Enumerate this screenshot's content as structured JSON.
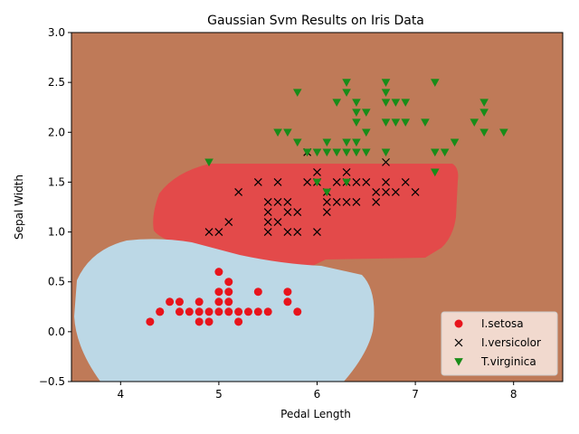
{
  "chart_data": {
    "type": "scatter",
    "title": "Gaussian Svm Results on Iris Data",
    "xlabel": "Pedal Length",
    "ylabel": "Sepal Width",
    "xlim": [
      3.5,
      8.5
    ],
    "ylim": [
      -0.5,
      3.0
    ],
    "xticks": [
      "4",
      "5",
      "6",
      "7",
      "8"
    ],
    "yticks": [
      "−0.5",
      "0.0",
      "0.5",
      "1.0",
      "1.5",
      "2.0",
      "2.5",
      "3.0"
    ],
    "grid": false,
    "legend_position": "bottom-right",
    "regions": [
      {
        "class": "T.virginica",
        "color": "#bf7a58",
        "role": "background"
      },
      {
        "class": "I.versicolor",
        "color": "#e34a4a"
      },
      {
        "class": "I.setosa",
        "color": "#bcd8e6"
      }
    ],
    "series": [
      {
        "name": "I.setosa",
        "marker": "circle",
        "color": "#e8141c",
        "points": [
          [
            4.3,
            0.1
          ],
          [
            4.4,
            0.2
          ],
          [
            4.4,
            0.2
          ],
          [
            4.5,
            0.3
          ],
          [
            4.6,
            0.2
          ],
          [
            4.6,
            0.3
          ],
          [
            4.7,
            0.2
          ],
          [
            4.8,
            0.1
          ],
          [
            4.8,
            0.2
          ],
          [
            4.8,
            0.3
          ],
          [
            4.9,
            0.1
          ],
          [
            4.9,
            0.2
          ],
          [
            5.0,
            0.2
          ],
          [
            5.0,
            0.3
          ],
          [
            5.0,
            0.4
          ],
          [
            5.0,
            0.6
          ],
          [
            5.1,
            0.2
          ],
          [
            5.1,
            0.3
          ],
          [
            5.1,
            0.4
          ],
          [
            5.1,
            0.5
          ],
          [
            5.2,
            0.1
          ],
          [
            5.2,
            0.2
          ],
          [
            5.3,
            0.2
          ],
          [
            5.4,
            0.2
          ],
          [
            5.4,
            0.4
          ],
          [
            5.5,
            0.2
          ],
          [
            5.7,
            0.3
          ],
          [
            5.7,
            0.4
          ],
          [
            5.8,
            0.2
          ]
        ]
      },
      {
        "name": "I.versicolor",
        "marker": "x",
        "color": "#000000",
        "points": [
          [
            4.9,
            1.0
          ],
          [
            5.0,
            1.0
          ],
          [
            5.1,
            1.1
          ],
          [
            5.2,
            1.4
          ],
          [
            5.4,
            1.5
          ],
          [
            5.5,
            1.0
          ],
          [
            5.5,
            1.1
          ],
          [
            5.5,
            1.2
          ],
          [
            5.5,
            1.3
          ],
          [
            5.6,
            1.1
          ],
          [
            5.6,
            1.3
          ],
          [
            5.6,
            1.5
          ],
          [
            5.7,
            1.0
          ],
          [
            5.7,
            1.2
          ],
          [
            5.7,
            1.3
          ],
          [
            5.8,
            1.0
          ],
          [
            5.8,
            1.2
          ],
          [
            5.9,
            1.5
          ],
          [
            5.9,
            1.8
          ],
          [
            6.0,
            1.0
          ],
          [
            6.0,
            1.5
          ],
          [
            6.0,
            1.6
          ],
          [
            6.1,
            1.2
          ],
          [
            6.1,
            1.3
          ],
          [
            6.1,
            1.4
          ],
          [
            6.2,
            1.3
          ],
          [
            6.2,
            1.5
          ],
          [
            6.3,
            1.3
          ],
          [
            6.3,
            1.5
          ],
          [
            6.3,
            1.6
          ],
          [
            6.4,
            1.3
          ],
          [
            6.4,
            1.5
          ],
          [
            6.5,
            1.5
          ],
          [
            6.6,
            1.3
          ],
          [
            6.6,
            1.4
          ],
          [
            6.7,
            1.4
          ],
          [
            6.7,
            1.5
          ],
          [
            6.7,
            1.7
          ],
          [
            6.8,
            1.4
          ],
          [
            6.9,
            1.5
          ],
          [
            7.0,
            1.4
          ]
        ]
      },
      {
        "name": "T.virginica",
        "marker": "triangle-down",
        "color": "#198c19",
        "points": [
          [
            4.9,
            1.7
          ],
          [
            5.6,
            2.0
          ],
          [
            5.7,
            2.0
          ],
          [
            5.8,
            1.9
          ],
          [
            5.8,
            2.4
          ],
          [
            5.9,
            1.8
          ],
          [
            6.0,
            1.5
          ],
          [
            6.0,
            1.8
          ],
          [
            6.1,
            1.4
          ],
          [
            6.1,
            1.8
          ],
          [
            6.1,
            1.9
          ],
          [
            6.2,
            1.8
          ],
          [
            6.2,
            2.3
          ],
          [
            6.3,
            1.5
          ],
          [
            6.3,
            1.8
          ],
          [
            6.3,
            1.9
          ],
          [
            6.3,
            2.4
          ],
          [
            6.3,
            2.5
          ],
          [
            6.4,
            1.8
          ],
          [
            6.4,
            1.9
          ],
          [
            6.4,
            2.1
          ],
          [
            6.4,
            2.2
          ],
          [
            6.4,
            2.3
          ],
          [
            6.5,
            1.8
          ],
          [
            6.5,
            2.0
          ],
          [
            6.5,
            2.2
          ],
          [
            6.7,
            1.8
          ],
          [
            6.7,
            2.1
          ],
          [
            6.7,
            2.3
          ],
          [
            6.7,
            2.4
          ],
          [
            6.7,
            2.5
          ],
          [
            6.8,
            2.1
          ],
          [
            6.8,
            2.3
          ],
          [
            6.9,
            2.1
          ],
          [
            6.9,
            2.3
          ],
          [
            7.1,
            2.1
          ],
          [
            7.2,
            1.6
          ],
          [
            7.2,
            1.8
          ],
          [
            7.2,
            2.5
          ],
          [
            7.3,
            1.8
          ],
          [
            7.4,
            1.9
          ],
          [
            7.6,
            2.1
          ],
          [
            7.7,
            2.0
          ],
          [
            7.7,
            2.2
          ],
          [
            7.7,
            2.3
          ],
          [
            7.9,
            2.0
          ]
        ]
      }
    ]
  }
}
